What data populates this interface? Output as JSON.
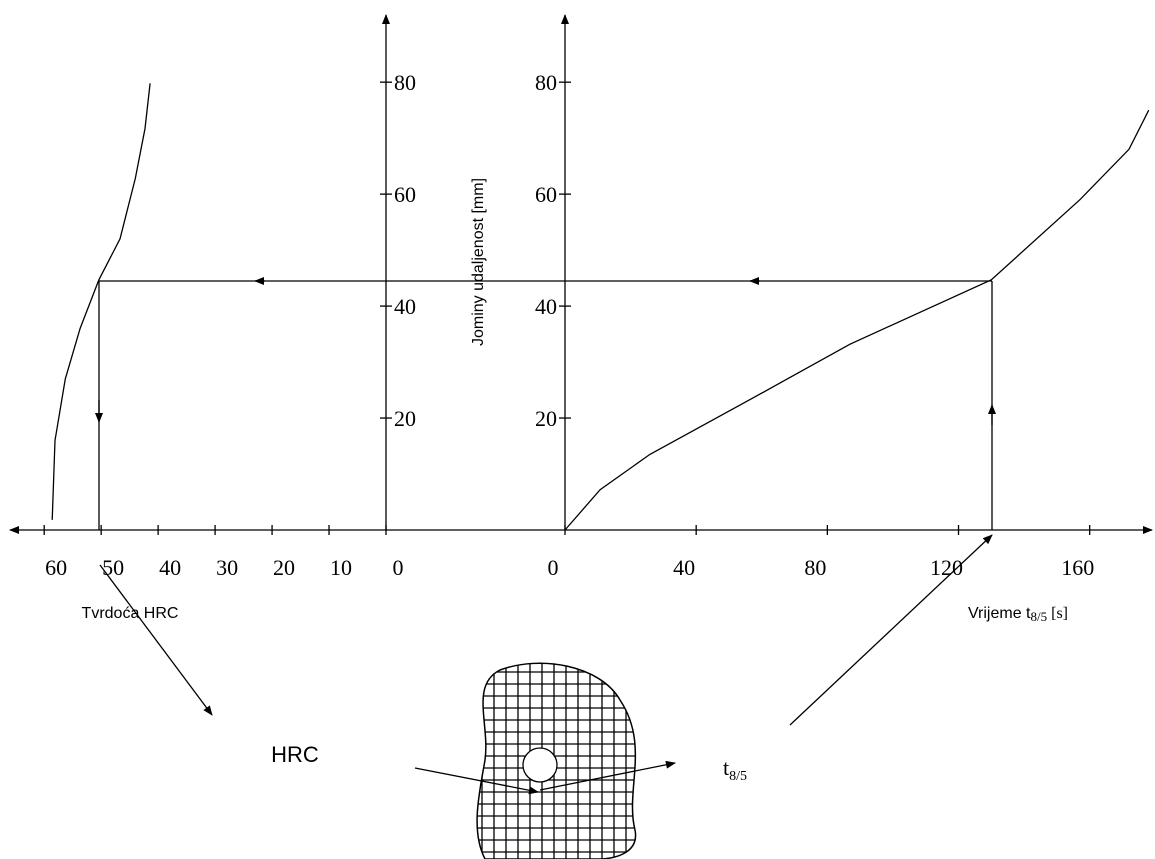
{
  "chart_data": [
    {
      "type": "line",
      "xlabel": "Tvrdoća  HRC",
      "ylabel": "Jominy udaljenost [mm]",
      "xlim": [
        66,
        0
      ],
      "ylim": [
        0,
        92
      ],
      "xticks": [
        60,
        50,
        40,
        30,
        20,
        10,
        0
      ],
      "yticks": [
        20,
        40,
        60,
        80
      ],
      "series": [
        {
          "color": "#000000",
          "x": [
            58.6,
            58.1,
            56.3,
            53.7,
            50.4,
            46.7,
            44,
            42.3,
            41.4
          ],
          "values": [
            1.8,
            16,
            27,
            36,
            44.7,
            52,
            62.8,
            71.7,
            79.8
          ]
        }
      ]
    },
    {
      "type": "line",
      "xlabel": [
        "Vrijeme t",
        "8/5",
        " [s]"
      ],
      "xlim": [
        0,
        179
      ],
      "ylim": [
        0,
        92
      ],
      "xticks": [
        0,
        40,
        80,
        120,
        160
      ],
      "yticks": [
        20,
        40,
        60,
        80
      ],
      "series": [
        {
          "color": "#000000",
          "x": [
            0,
            10.7,
            25.9,
            56.4,
            86.9,
            130,
            157,
            172,
            178
          ],
          "values": [
            0,
            7.2,
            13.5,
            23.3,
            33.2,
            44.7,
            59,
            68,
            75
          ]
        }
      ]
    }
  ],
  "labels": {
    "hrc": "HRC",
    "t": [
      "t",
      "8/5"
    ]
  }
}
